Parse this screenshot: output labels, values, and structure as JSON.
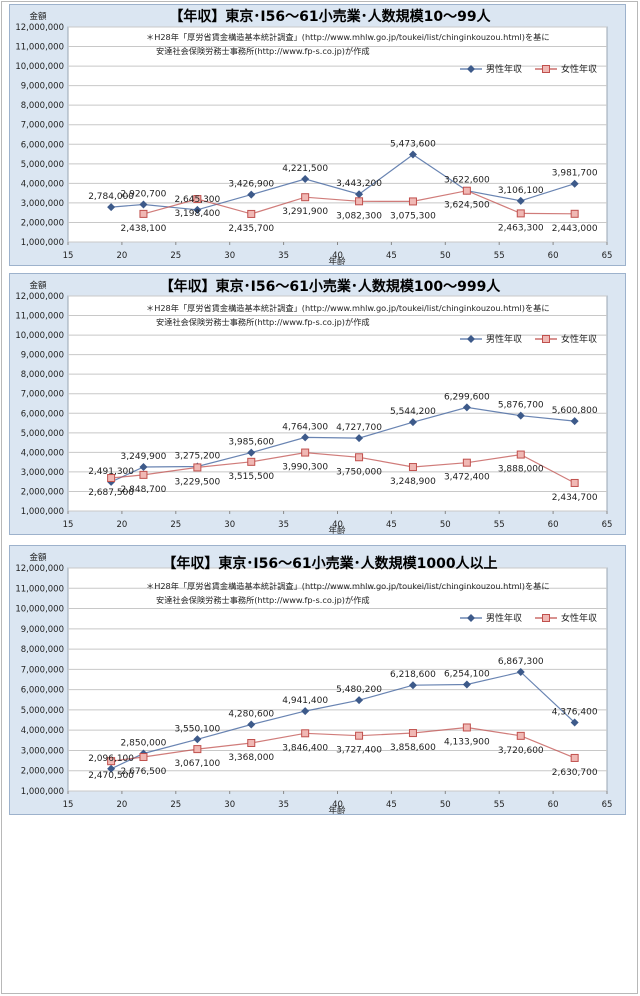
{
  "page": {
    "charts": [
      {
        "title": "【年収】東京･I56～61小売業･人数規模10～99人",
        "note_line1": "＊H28年「厚労省賃金構造基本統計調査」(http://www.mhlw.go.jp/toukei/list/chinginkouzou.html)を基に",
        "note_line2": "安達社会保険労務士事務所(http://www.fp-s.co.jp)が作成",
        "ylabel": "金額",
        "xlabel": "年齢"
      },
      {
        "title": "【年収】東京･I56～61小売業･人数規模100～999人",
        "note_line1": "＊H28年「厚労省賃金構造基本統計調査」(http://www.mhlw.go.jp/toukei/list/chinginkouzou.html)を基に",
        "note_line2": "安達社会保険労務士事務所(http://www.fp-s.co.jp)が作成",
        "ylabel": "金額",
        "xlabel": "年齢"
      },
      {
        "title": "【年収】東京･I56～61小売業･人数規模1000人以上",
        "note_line1": "＊H28年「厚労省賃金構造基本統計調査」(http://www.mhlw.go.jp/toukei/list/chinginkouzou.html)を基に",
        "note_line2": "安達社会保険労務士事務所(http://www.fp-s.co.jp)が作成",
        "ylabel": "金額",
        "xlabel": "年齢"
      }
    ]
  },
  "chart_data": [
    {
      "type": "scatter",
      "title": "【年収】東京･I56～61小売業･人数規模10～99人",
      "xlabel": "年齢",
      "ylabel": "金額",
      "xlim": [
        15,
        65
      ],
      "ylim": [
        1000000,
        12000000
      ],
      "xticks": [
        15,
        20,
        25,
        30,
        35,
        40,
        45,
        50,
        55,
        60,
        65
      ],
      "yticks": [
        "1,000,000",
        "2,000,000",
        "3,000,000",
        "4,000,000",
        "5,000,000",
        "6,000,000",
        "7,000,000",
        "8,000,000",
        "9,000,000",
        "10,000,000",
        "11,000,000",
        "12,000,000"
      ],
      "grid": "horizontal",
      "legend": "top-right",
      "x": [
        19,
        22,
        27,
        32,
        37,
        42,
        47,
        52,
        57,
        62
      ],
      "series": [
        {
          "name": "男性年収",
          "color": "#4f6fa5",
          "marker": "diamond",
          "values": [
            2784000,
            2920700,
            2645300,
            3426900,
            4221500,
            3443200,
            5473600,
            3622600,
            3106100,
            3981700
          ],
          "labels": [
            "2,784,000",
            "2,920,700",
            "2,645,300",
            "3,426,900",
            "4,221,500",
            "3,443,200",
            "5,473,600",
            "3,622,600",
            "3,106,100",
            "3,981,700"
          ]
        },
        {
          "name": "女性年収",
          "color": "#c0504d",
          "marker": "square",
          "values": [
            null,
            2438100,
            3198400,
            2435700,
            3291900,
            3082300,
            3075300,
            3624500,
            2463300,
            2443000
          ],
          "labels": [
            "",
            "2,438,100",
            "3,198,400",
            "2,435,700",
            "3,291,900",
            "3,082,300",
            "3,075,300",
            "3,624,500",
            "2,463,300",
            "2,443,000"
          ]
        }
      ]
    },
    {
      "type": "scatter",
      "title": "【年収】東京･I56～61小売業･人数規模100～999人",
      "xlabel": "年齢",
      "ylabel": "金額",
      "xlim": [
        15,
        65
      ],
      "ylim": [
        1000000,
        12000000
      ],
      "xticks": [
        15,
        20,
        25,
        30,
        35,
        40,
        45,
        50,
        55,
        60,
        65
      ],
      "yticks": [
        "1,000,000",
        "2,000,000",
        "3,000,000",
        "4,000,000",
        "5,000,000",
        "6,000,000",
        "7,000,000",
        "8,000,000",
        "9,000,000",
        "10,000,000",
        "11,000,000",
        "12,000,000"
      ],
      "grid": "horizontal",
      "legend": "top-right",
      "x": [
        19,
        22,
        27,
        32,
        37,
        42,
        47,
        52,
        57,
        62
      ],
      "series": [
        {
          "name": "男性年収",
          "color": "#4f6fa5",
          "marker": "diamond",
          "values": [
            2491300,
            3249900,
            3275200,
            3985600,
            4764300,
            4727700,
            5544200,
            6299600,
            5876700,
            5600800
          ],
          "labels": [
            "2,491,300",
            "3,249,900",
            "3,275,200",
            "3,985,600",
            "4,764,300",
            "4,727,700",
            "5,544,200",
            "6,299,600",
            "5,876,700",
            "5,600,800"
          ]
        },
        {
          "name": "女性年収",
          "color": "#c0504d",
          "marker": "square",
          "values": [
            2687500,
            2848700,
            3229500,
            3515500,
            3990300,
            3750000,
            3248900,
            3472400,
            3888000,
            2434700
          ],
          "labels": [
            "2,687,500",
            "2,848,700",
            "3,229,500",
            "3,515,500",
            "3,990,300",
            "3,750,000",
            "3,248,900",
            "3,472,400",
            "3,888,000",
            "2,434,700"
          ]
        }
      ]
    },
    {
      "type": "scatter",
      "title": "【年収】東京･I56～61小売業･人数規模1000人以上",
      "xlabel": "年齢",
      "ylabel": "金額",
      "xlim": [
        15,
        65
      ],
      "ylim": [
        1000000,
        12000000
      ],
      "xticks": [
        15,
        20,
        25,
        30,
        35,
        40,
        45,
        50,
        55,
        60,
        65
      ],
      "yticks": [
        "1,000,000",
        "2,000,000",
        "3,000,000",
        "4,000,000",
        "5,000,000",
        "6,000,000",
        "7,000,000",
        "8,000,000",
        "9,000,000",
        "10,000,000",
        "11,000,000",
        "12,000,000"
      ],
      "grid": "horizontal",
      "legend": "top-right",
      "x": [
        19,
        22,
        27,
        32,
        37,
        42,
        47,
        52,
        57,
        62
      ],
      "series": [
        {
          "name": "男性年収",
          "color": "#4f6fa5",
          "marker": "diamond",
          "values": [
            2096100,
            2850000,
            3550100,
            4280600,
            4941400,
            5480200,
            6218600,
            6254100,
            6867300,
            4376400
          ],
          "labels": [
            "2,096,100",
            "2,850,000",
            "3,550,100",
            "4,280,600",
            "4,941,400",
            "5,480,200",
            "6,218,600",
            "6,254,100",
            "6,867,300",
            "4,376,400"
          ]
        },
        {
          "name": "女性年収",
          "color": "#c0504d",
          "marker": "square",
          "values": [
            2470500,
            2676500,
            3067100,
            3368000,
            3846400,
            3727400,
            3858600,
            4133900,
            3720600,
            2630700
          ],
          "labels": [
            "2,470,500",
            "2,676,500",
            "3,067,100",
            "3,368,000",
            "3,846,400",
            "3,727,400",
            "3,858,600",
            "4,133,900",
            "3,720,600",
            "2,630,700"
          ]
        }
      ]
    }
  ]
}
